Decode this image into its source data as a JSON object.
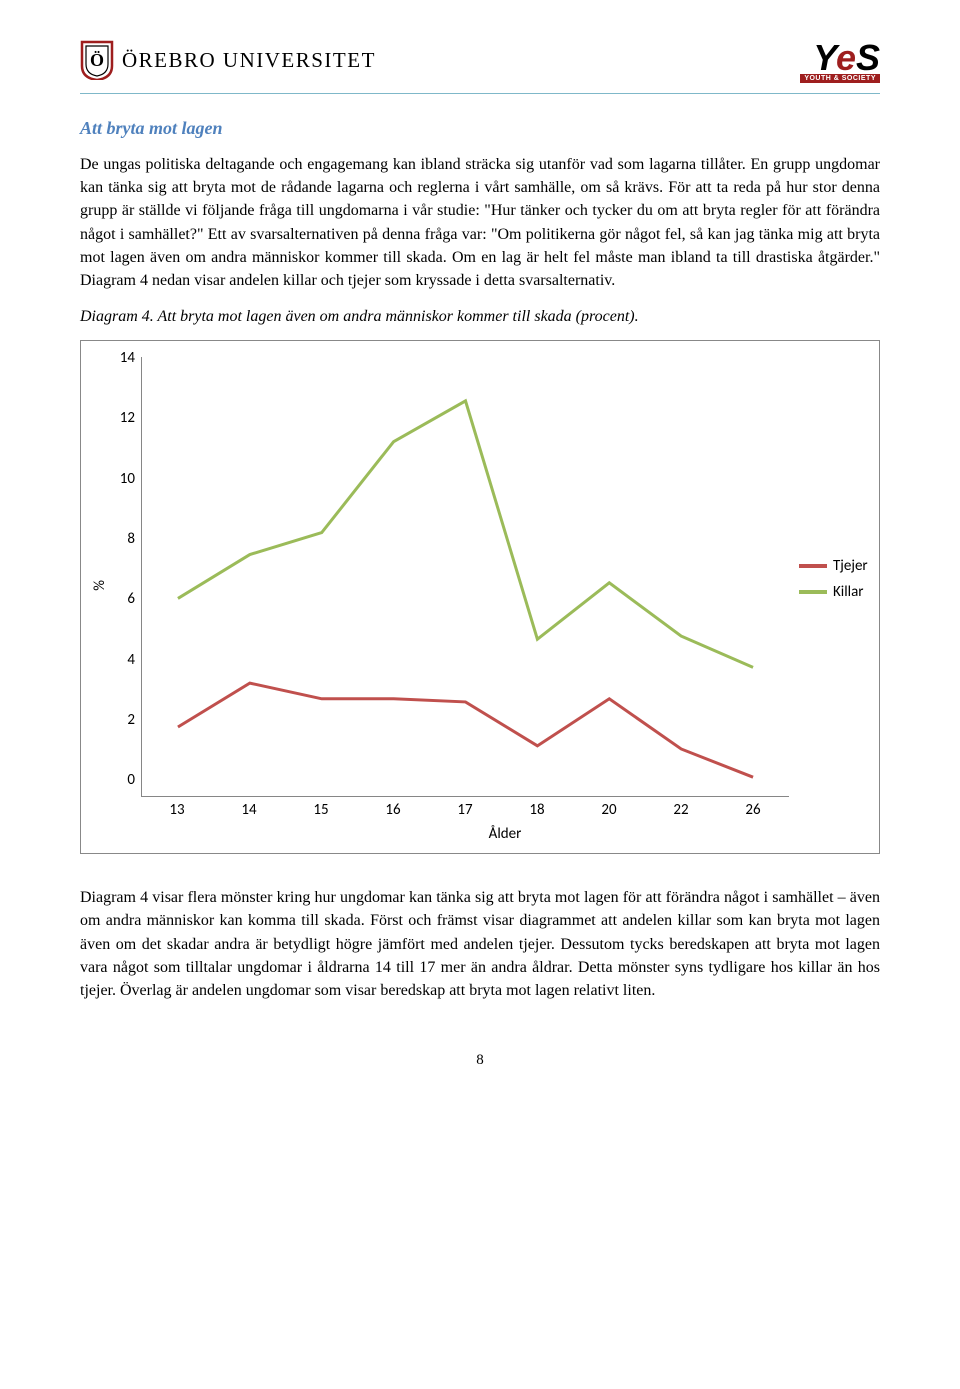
{
  "header": {
    "university_name": "ÖREBRO UNIVERSITET",
    "yes_logo_letters": [
      "Y",
      "e",
      "S"
    ],
    "yes_sub": "YOUTH & SOCIETY"
  },
  "section_title": "Att bryta mot lagen",
  "paragraph_1": "De ungas politiska deltagande och engagemang kan ibland sträcka sig utanför vad som lagarna tillåter. En grupp ungdomar kan tänka sig att bryta mot de rådande lagarna och reglerna i vårt samhälle, om så krävs. För att ta reda på hur stor denna grupp är ställde vi följande fråga till ungdomarna i vår studie: \"Hur tänker och tycker du om att bryta regler för att förändra något i samhället?\" Ett av svarsalternativen på denna fråga var: \"Om politikerna gör något fel, så kan jag tänka mig att bryta mot lagen även om andra människor kommer till skada. Om en lag är helt fel måste man ibland ta till drastiska åtgärder.\" Diagram 4 nedan visar andelen killar och tjejer som kryssade i detta svarsalternativ.",
  "caption": "Diagram 4. Att bryta mot lagen även om andra människor kommer till skada (procent).",
  "chart": {
    "type": "line",
    "y_label": "%",
    "x_label": "Ålder",
    "y_ticks": [
      "14",
      "12",
      "10",
      "8",
      "6",
      "4",
      "2",
      "0"
    ],
    "x_categories": [
      "13",
      "14",
      "15",
      "16",
      "17",
      "18",
      "20",
      "22",
      "26"
    ],
    "ylim": [
      0,
      14
    ],
    "series": [
      {
        "name": "Tjejer",
        "color": "#c0504d",
        "values": [
          2.2,
          3.6,
          3.1,
          3.1,
          3.0,
          1.6,
          3.1,
          1.5,
          0.6
        ]
      },
      {
        "name": "Killar",
        "color": "#9bbb59",
        "values": [
          6.3,
          7.7,
          8.4,
          11.3,
          12.6,
          5.0,
          6.8,
          5.1,
          4.1
        ]
      }
    ],
    "line_width": 3,
    "border_color": "#888888",
    "axis_color": "#868686",
    "tick_fontsize": 15,
    "font_family": "Calibri"
  },
  "paragraph_2": "Diagram 4 visar flera mönster kring hur ungdomar kan tänka sig att bryta mot lagen för att förändra något i samhället – även om andra människor kan komma till skada. Först och främst visar diagrammet att andelen killar som kan bryta mot lagen även om det skadar andra är betydligt högre jämfört med andelen tjejer. Dessutom tycks beredskapen att bryta mot lagen vara något som tilltalar ungdomar i åldrarna 14 till 17 mer än andra åldrar. Detta mönster syns tydligare hos killar än hos tjejer. Överlag är andelen ungdomar som visar beredskap att bryta mot lagen relativt liten.",
  "page_number": "8"
}
